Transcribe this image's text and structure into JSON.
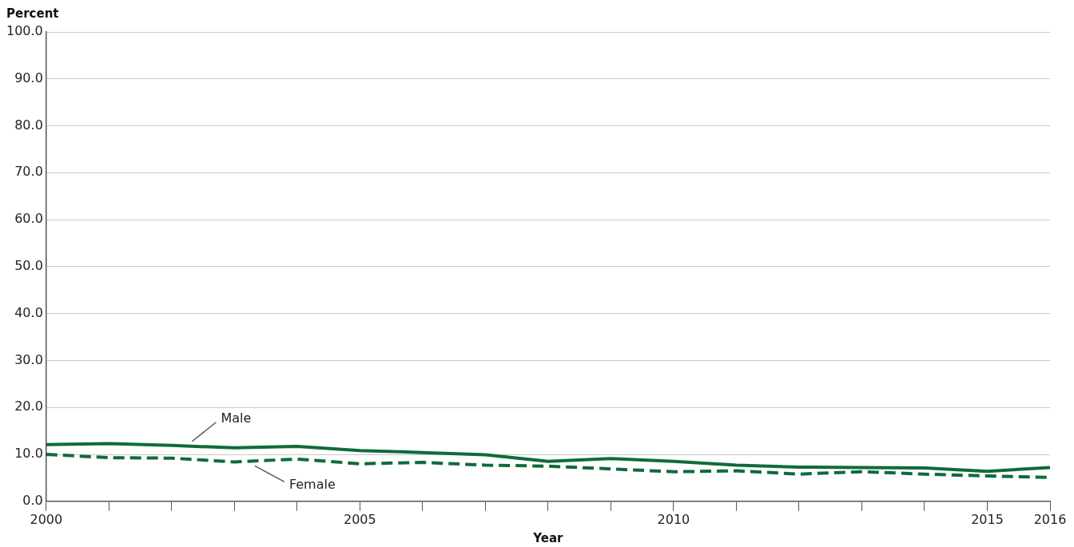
{
  "chart_data": {
    "type": "line",
    "ylabel": "Percent",
    "xlabel": "Year",
    "x": [
      2000,
      2001,
      2002,
      2003,
      2004,
      2005,
      2006,
      2007,
      2008,
      2009,
      2010,
      2011,
      2012,
      2013,
      2014,
      2015,
      2016
    ],
    "xlim": [
      2000,
      2016
    ],
    "xticks": [
      2000,
      {
        "value": 2001,
        "label": null
      },
      {
        "value": 2002,
        "label": null
      },
      {
        "value": 2003,
        "label": null
      },
      {
        "value": 2004,
        "label": null
      },
      2005,
      {
        "value": 2006,
        "label": null
      },
      {
        "value": 2007,
        "label": null
      },
      {
        "value": 2008,
        "label": null
      },
      {
        "value": 2009,
        "label": null
      },
      2010,
      {
        "value": 2011,
        "label": null
      },
      {
        "value": 2012,
        "label": null
      },
      {
        "value": 2013,
        "label": null
      },
      {
        "value": 2014,
        "label": null
      },
      2015,
      2016
    ],
    "ylim": [
      0,
      100
    ],
    "yticks": [
      {
        "value": 0,
        "label": "0.0"
      },
      {
        "value": 10,
        "label": "10.0"
      },
      {
        "value": 20,
        "label": "20.0"
      },
      {
        "value": 30,
        "label": "30.0"
      },
      {
        "value": 40,
        "label": "40.0"
      },
      {
        "value": 50,
        "label": "50.0"
      },
      {
        "value": 60,
        "label": "60.0"
      },
      {
        "value": 70,
        "label": "70.0"
      },
      {
        "value": 80,
        "label": "80.0"
      },
      {
        "value": 90,
        "label": "90.0"
      },
      {
        "value": 100,
        "label": "100.0"
      }
    ],
    "grid": "y",
    "legend": false,
    "marker": "none",
    "series": [
      {
        "name": "Male",
        "color": "#0f6b3a",
        "line_style": "solid",
        "values": [
          12.1,
          12.3,
          11.9,
          11.4,
          11.7,
          10.8,
          10.4,
          9.9,
          8.5,
          9.1,
          8.5,
          7.7,
          7.3,
          7.2,
          7.1,
          6.4,
          7.2
        ]
      },
      {
        "name": "Female",
        "color": "#0f6b3a",
        "line_style": "dashed",
        "values": [
          10.0,
          9.3,
          9.2,
          8.4,
          9.0,
          8.0,
          8.3,
          7.7,
          7.5,
          6.9,
          6.3,
          6.5,
          5.8,
          6.3,
          5.8,
          5.4,
          5.1
        ]
      }
    ]
  }
}
